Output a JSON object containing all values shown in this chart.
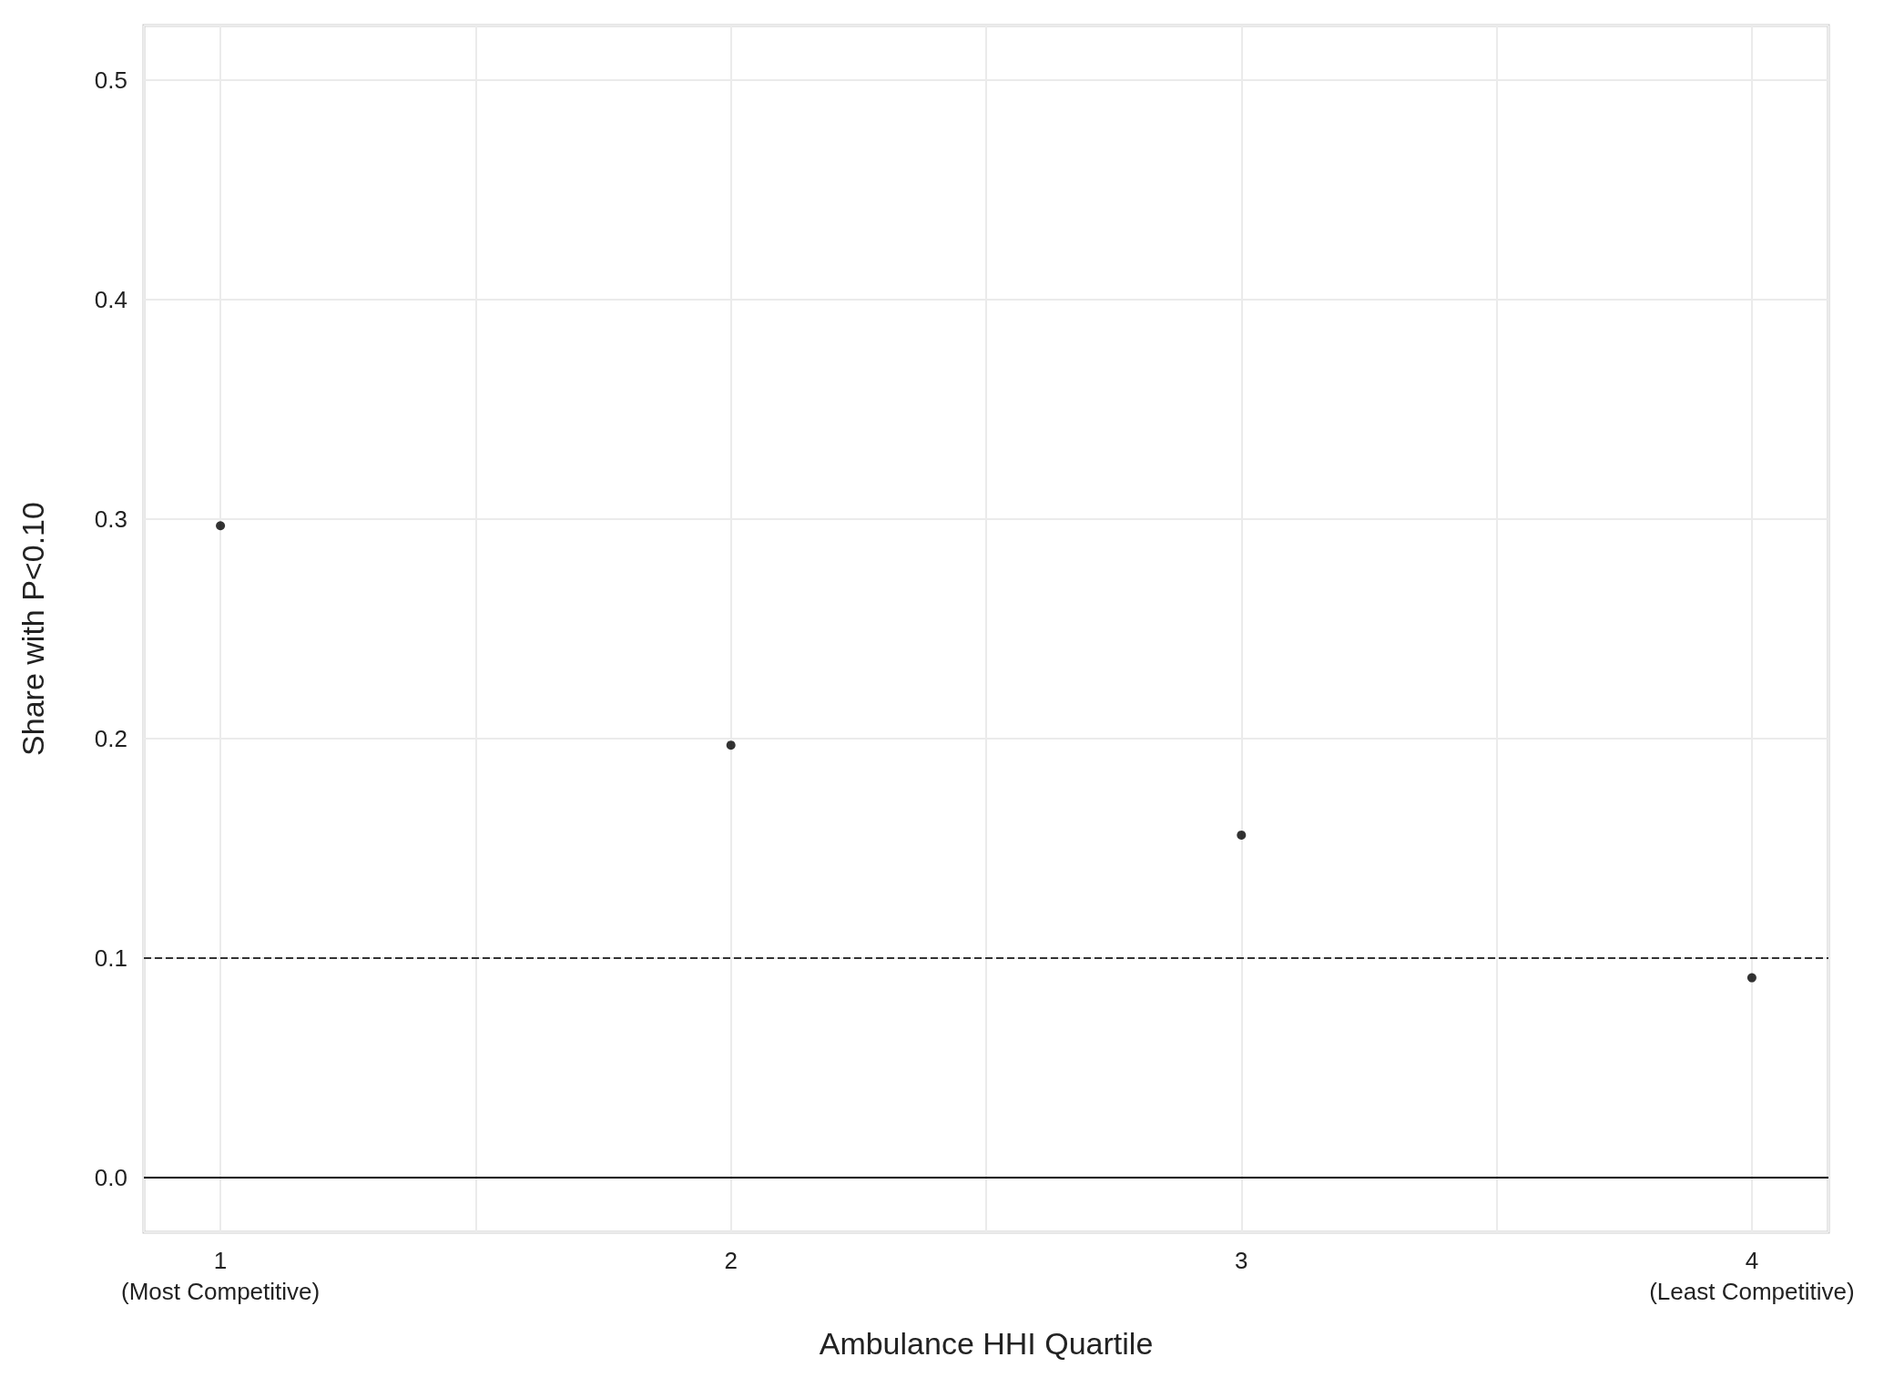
{
  "chart_data": {
    "type": "scatter",
    "xlabel": "Ambulance HHI Quartile",
    "ylabel": "Share with P<0.10",
    "categories": [
      "1\n(Most Competitive)",
      "2",
      "3",
      "4\n(Least Competitive)"
    ],
    "values": [
      0.297,
      0.197,
      0.156,
      0.091
    ],
    "color": "#000000",
    "marker": "circle",
    "ylim": [
      -0.025,
      0.525
    ],
    "yticks": [
      {
        "value": 0,
        "label": "0.0"
      },
      0.1,
      0.2,
      0.3,
      0.4,
      0.5
    ],
    "ref_lines": [
      {
        "axis": "y",
        "value": 0.1,
        "label": null,
        "color": "#333333",
        "line_style": "dashed"
      },
      {
        "axis": "y",
        "value": 0,
        "label": null,
        "color": "#000000",
        "line_style": "solid"
      }
    ],
    "grid": true
  }
}
